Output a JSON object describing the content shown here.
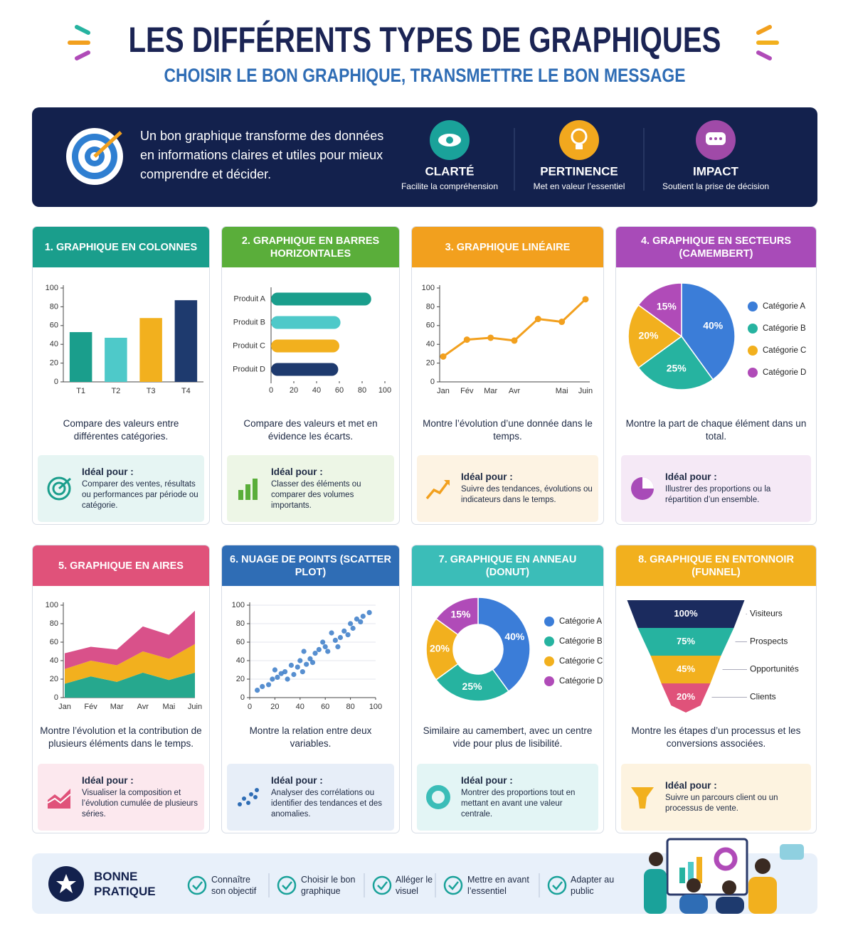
{
  "header": {
    "title": "LES DIFFÉRENTS TYPES DE GRAPHIQUES",
    "subtitle": "CHOISIR LE BON GRAPHIQUE, TRANSMETTRE LE BON MESSAGE"
  },
  "intro": {
    "text": "Un bon graphique transforme des données en informations claires et utiles pour mieux comprendre et décider.",
    "pillars": [
      {
        "title": "CLARTÉ",
        "text": "Facilite la compréhension"
      },
      {
        "title": "PERTINENCE",
        "text": "Met en valeur l’essentiel"
      },
      {
        "title": "IMPACT",
        "text": "Soutient la prise de décision"
      }
    ]
  },
  "ideal_label": "Idéal pour :",
  "cards": [
    {
      "description": "Compare des valeurs entre différentes catégories.",
      "ideal": "Comparer des ventes, résultats ou performances par période ou catégorie."
    },
    {
      "description": "Compare des valeurs et met en évidence les écarts.",
      "ideal": "Classer des éléments ou comparer des volumes importants."
    },
    {
      "description": "Montre l’évolution d’une donnée dans le temps.",
      "ideal": "Suivre des tendances, évolutions ou indicateurs dans le temps."
    },
    {
      "description": "Montre la part de chaque élément dans un total.",
      "ideal": "Illustrer des proportions ou la répartition d’un ensemble."
    },
    {
      "description": "Montre l’évolution et la contribution de plusieurs éléments dans le temps.",
      "ideal": "Visualiser la composition et l’évolution cumulée de plusieurs séries."
    },
    {
      "description": "Montre la relation entre deux variables.",
      "ideal": "Analyser des corrélations ou identifier des tendances et des anomalies."
    },
    {
      "description": "Similaire au camembert, avec un centre vide pour plus de lisibilité.",
      "ideal": "Montrer des proportions tout en mettant en avant une valeur centrale."
    },
    {
      "description": "Montre les étapes d’un processus et les conversions associées.",
      "ideal": "Suivre un parcours client ou un processus de vente."
    }
  ],
  "chart_data": [
    {
      "type": "bar",
      "title": "1. GRAPHIQUE EN COLONNES",
      "categories": [
        "T1",
        "T2",
        "T3",
        "T4"
      ],
      "values": [
        53,
        47,
        68,
        87
      ],
      "colors": [
        "#1a9e8c",
        "#4ec9c9",
        "#f2b01e",
        "#1e3a6e"
      ],
      "ylim": [
        0,
        100
      ],
      "yticks": [
        0,
        20,
        40,
        60,
        80,
        100
      ]
    },
    {
      "type": "hbar",
      "title": "2. GRAPHIQUE EN BARRES HORIZONTALES",
      "categories": [
        "Produit A",
        "Produit B",
        "Produit C",
        "Produit D"
      ],
      "values": [
        88,
        61,
        60,
        59
      ],
      "colors": [
        "#1a9e8c",
        "#4ec9c9",
        "#f2b01e",
        "#1e3a6e"
      ],
      "xlim": [
        0,
        100
      ],
      "xticks": [
        0,
        20,
        40,
        60,
        80,
        100
      ]
    },
    {
      "type": "line",
      "title": "3. GRAPHIQUE LINÉAIRE",
      "categories": [
        "Jan",
        "Fév",
        "Mar",
        "Avr",
        null,
        "Mai",
        "Juin"
      ],
      "values": [
        27,
        45,
        47,
        44,
        67,
        64,
        88
      ],
      "color": "#f2a01e",
      "ylim": [
        0,
        100
      ],
      "yticks": [
        0,
        20,
        40,
        60,
        80,
        100
      ]
    },
    {
      "type": "pie",
      "title": "4. GRAPHIQUE EN SECTEURS (CAMEMBERT)",
      "categories": [
        "Catégorie A",
        "Catégorie B",
        "Catégorie C",
        "Catégorie D"
      ],
      "values": [
        40,
        25,
        20,
        15
      ],
      "value_labels": [
        "40%",
        "25%",
        "20%",
        "15%"
      ],
      "colors": [
        "#3b7dd8",
        "#26b3a0",
        "#f2b01e",
        "#b04bb8"
      ]
    },
    {
      "type": "area",
      "title": "5. GRAPHIQUE EN AIRES",
      "categories": [
        "Jan",
        "Fév",
        "Mar",
        "Avr",
        "Mai",
        "Juin"
      ],
      "series": [
        {
          "color": "#26a88e",
          "values": [
            15,
            23,
            17,
            27,
            19,
            27
          ]
        },
        {
          "color": "#f2b01e",
          "values": [
            16,
            17,
            18,
            23,
            23,
            31
          ]
        },
        {
          "color": "#d9518a",
          "values": [
            17,
            15,
            17,
            27,
            26,
            36
          ]
        }
      ],
      "ylim": [
        0,
        100
      ],
      "yticks": [
        0,
        20,
        40,
        60,
        80,
        100
      ]
    },
    {
      "type": "scatter",
      "title": "6. NUAGE DE POINTS (SCATTER PLOT)",
      "x": [
        6,
        10,
        15,
        18,
        20,
        22,
        25,
        28,
        30,
        33,
        35,
        38,
        40,
        42,
        43,
        45,
        48,
        50,
        52,
        55,
        58,
        60,
        62,
        65,
        68,
        70,
        72,
        75,
        78,
        80,
        82,
        85,
        88,
        90,
        95
      ],
      "y": [
        8,
        12,
        14,
        20,
        30,
        22,
        26,
        28,
        20,
        35,
        25,
        33,
        40,
        28,
        50,
        36,
        42,
        38,
        48,
        52,
        60,
        55,
        50,
        70,
        62,
        55,
        65,
        72,
        68,
        80,
        75,
        85,
        82,
        88,
        92
      ],
      "color": "#3a7bc8",
      "xlim": [
        0,
        100
      ],
      "xticks": [
        0,
        20,
        40,
        60,
        80,
        100
      ],
      "ylim": [
        0,
        100
      ],
      "yticks": [
        0,
        20,
        40,
        60,
        80,
        100
      ]
    },
    {
      "type": "donut",
      "title": "7. GRAPHIQUE EN ANNEAU (DONUT)",
      "categories": [
        "Catégorie A",
        "Catégorie B",
        "Catégorie C",
        "Catégorie D"
      ],
      "values": [
        40,
        25,
        20,
        15
      ],
      "value_labels": [
        "40%",
        "25%",
        "20%",
        "15%"
      ],
      "colors": [
        "#3b7dd8",
        "#26b3a0",
        "#f2b01e",
        "#b04bb8"
      ]
    },
    {
      "type": "funnel",
      "title": "8. GRAPHIQUE EN ENTONNOIR (FUNNEL)",
      "categories": [
        "Visiteurs",
        "Prospects",
        "Opportunités",
        "Clients"
      ],
      "values": [
        100,
        75,
        45,
        20
      ],
      "value_labels": [
        "100%",
        "75%",
        "45%",
        "20%"
      ],
      "colors": [
        "#1b2b5e",
        "#26b3a0",
        "#f2b01e",
        "#e0527a"
      ]
    }
  ],
  "footer": {
    "title": "BONNE PRATIQUE",
    "items": [
      "Connaître son objectif",
      "Choisir le bon graphique",
      "Alléger le visuel",
      "Mettre en avant l’essentiel",
      "Adapter au public"
    ]
  }
}
